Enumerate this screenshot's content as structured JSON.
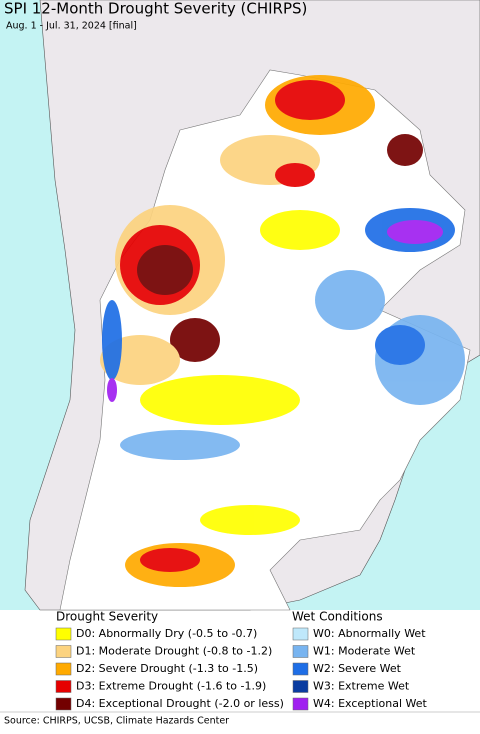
{
  "header": {
    "title": "SPI 12-Month Drought Severity (CHIRPS)",
    "subtitle": "Aug. 1 - Jul. 31, 2024 [final]"
  },
  "legend": {
    "drought": {
      "title": "Drought Severity",
      "items": [
        {
          "label": "D0: Abnormally Dry (-0.5 to -0.7)",
          "color": "#ffff00"
        },
        {
          "label": "D1: Moderate Drought (-0.8 to -1.2)",
          "color": "#fcd37f"
        },
        {
          "label": "D2: Severe Drought (-1.3 to -1.5)",
          "color": "#ffaa00"
        },
        {
          "label": "D3: Extreme Drought (-1.6 to -1.9)",
          "color": "#e60000"
        },
        {
          "label": "D4: Exceptional Drought (-2.0 or less)",
          "color": "#730000"
        }
      ]
    },
    "wet": {
      "title": "Wet Conditions",
      "items": [
        {
          "label": "W0: Abnormally Wet",
          "color": "#bfe8fb"
        },
        {
          "label": "W1: Moderate Wet",
          "color": "#78b4f0"
        },
        {
          "label": "W2: Severe Wet",
          "color": "#1e6ee6"
        },
        {
          "label": "W3: Extreme Wet",
          "color": "#0a3ca0"
        },
        {
          "label": "W4: Exceptional Wet",
          "color": "#a020f0"
        }
      ]
    }
  },
  "footer": {
    "source": "Source: CHIRPS, UCSB, Climate Hazards Center"
  }
}
